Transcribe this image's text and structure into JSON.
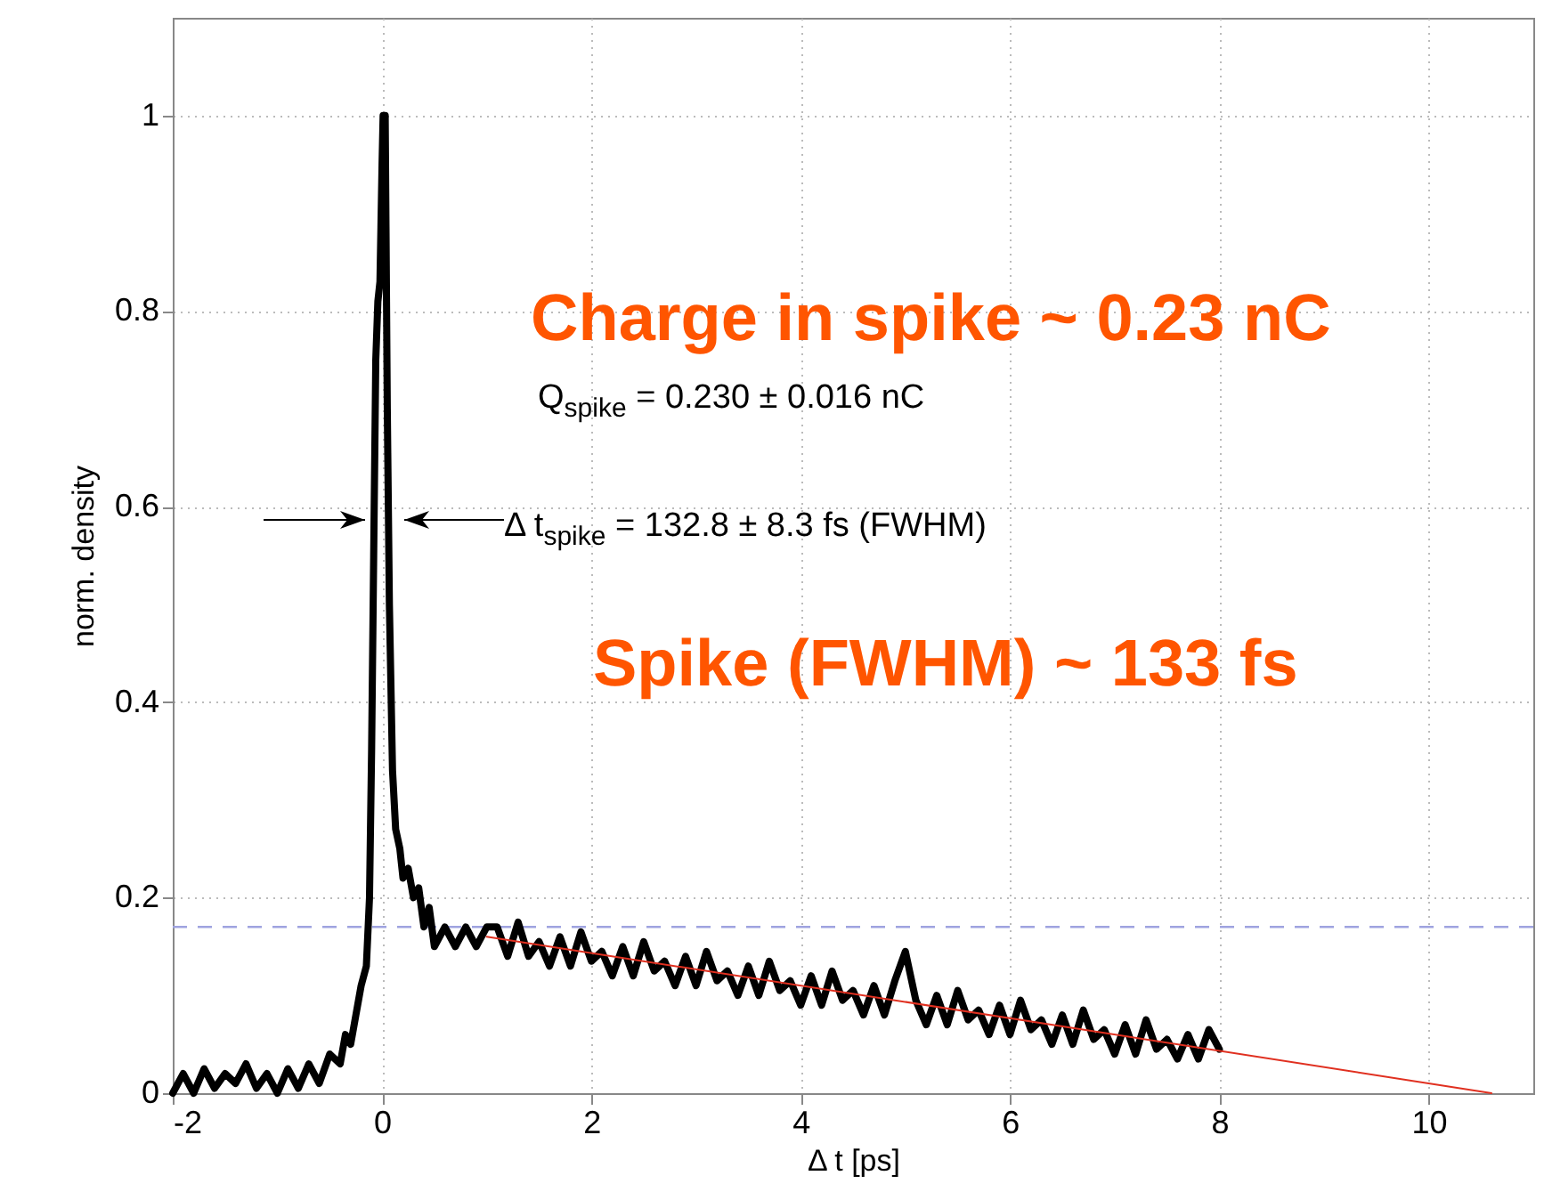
{
  "chart_data": {
    "type": "line",
    "xlabel": "Δ t [ps]",
    "ylabel": "norm. density",
    "xlim": [
      -2,
      11
    ],
    "xticks": [
      -2,
      0,
      2,
      4,
      6,
      8,
      10
    ],
    "ylim": [
      0,
      1.1
    ],
    "yticks": [
      0,
      0.2,
      0.4,
      0.6,
      0.8,
      1
    ],
    "grid": true,
    "marker": "none",
    "line_style": "solid",
    "series": [
      {
        "color": "#000000",
        "x": [
          -2,
          -1.9,
          -1.8,
          -1.7,
          -1.6,
          -1.5,
          -1.4,
          -1.3,
          -1.2,
          -1.1,
          -1.0,
          -0.9,
          -0.8,
          -0.7,
          -0.6,
          -0.5,
          -0.4,
          -0.35,
          -0.3,
          -0.25,
          -0.2,
          -0.15,
          -0.12,
          -0.1,
          -0.08,
          -0.06,
          -0.04,
          -0.02,
          0,
          0.01,
          0.03,
          0.05,
          0.07,
          0.1,
          0.13,
          0.17,
          0.2,
          0.25,
          0.3,
          0.35,
          0.4,
          0.45,
          0.5,
          0.6,
          0.7,
          0.8,
          0.9,
          1.0,
          1.1,
          1.2,
          1.3,
          1.4,
          1.5,
          1.6,
          1.7,
          1.8,
          1.9,
          2.0,
          2.1,
          2.2,
          2.3,
          2.4,
          2.5,
          2.6,
          2.7,
          2.8,
          2.9,
          3.0,
          3.1,
          3.2,
          3.3,
          3.4,
          3.5,
          3.6,
          3.7,
          3.8,
          3.9,
          4.0,
          4.1,
          4.2,
          4.3,
          4.4,
          4.5,
          4.6,
          4.7,
          4.8,
          4.9,
          5.0,
          5.1,
          5.2,
          5.3,
          5.4,
          5.5,
          5.6,
          5.7,
          5.8,
          5.9,
          6.0,
          6.1,
          6.2,
          6.3,
          6.4,
          6.5,
          6.6,
          6.7,
          6.8,
          6.9,
          7.0,
          7.1,
          7.2,
          7.3,
          7.4,
          7.5,
          7.6,
          7.7,
          7.8,
          7.9,
          8.0
        ],
        "values": [
          0.0,
          0.02,
          0.0,
          0.025,
          0.005,
          0.02,
          0.01,
          0.03,
          0.005,
          0.02,
          0.0,
          0.025,
          0.005,
          0.03,
          0.01,
          0.04,
          0.03,
          0.06,
          0.05,
          0.08,
          0.11,
          0.13,
          0.2,
          0.35,
          0.55,
          0.75,
          0.81,
          0.83,
          0.95,
          1.0,
          1.0,
          0.7,
          0.5,
          0.33,
          0.27,
          0.25,
          0.22,
          0.23,
          0.2,
          0.21,
          0.17,
          0.19,
          0.15,
          0.17,
          0.15,
          0.17,
          0.15,
          0.17,
          0.17,
          0.14,
          0.175,
          0.14,
          0.155,
          0.13,
          0.16,
          0.13,
          0.165,
          0.135,
          0.145,
          0.12,
          0.15,
          0.12,
          0.155,
          0.125,
          0.135,
          0.11,
          0.14,
          0.11,
          0.145,
          0.115,
          0.125,
          0.1,
          0.13,
          0.1,
          0.135,
          0.105,
          0.115,
          0.09,
          0.12,
          0.09,
          0.125,
          0.095,
          0.105,
          0.08,
          0.11,
          0.08,
          0.115,
          0.145,
          0.095,
          0.07,
          0.1,
          0.07,
          0.105,
          0.075,
          0.085,
          0.06,
          0.09,
          0.06,
          0.095,
          0.065,
          0.075,
          0.05,
          0.08,
          0.05,
          0.085,
          0.055,
          0.065,
          0.04,
          0.07,
          0.04,
          0.075,
          0.045,
          0.055,
          0.035,
          0.06,
          0.035,
          0.065,
          0.045
        ]
      },
      {
        "type": "line",
        "color": "#e03020",
        "x": [
          1,
          10.6
        ],
        "values": [
          0.16,
          0
        ]
      }
    ],
    "ref_lines": [
      {
        "axis": "y",
        "value": 0.17,
        "color": "#9fa3e0",
        "line_style": "dashed"
      }
    ],
    "annotations": [
      "Charge in spike ~ 0.23 nC",
      "Q$_{spike}$ = 0.230 ± 0.016 nC",
      "Δ t$_{spike}$ = 132.8 ± 8.3 fs (FWHM)",
      "Spike (FWHM) ~ 133 fs"
    ]
  }
}
